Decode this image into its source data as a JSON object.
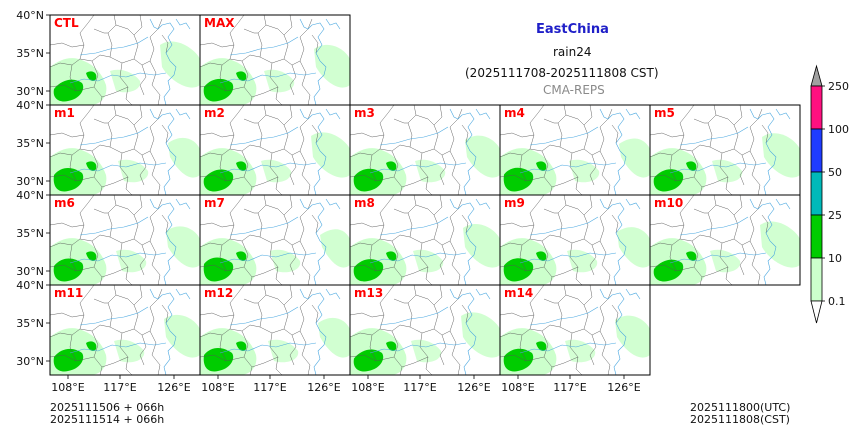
{
  "header": {
    "region": "EastChina",
    "variable": "rain24",
    "period": "(2025111708-2025111808 CST)",
    "source": "CMA-REPS"
  },
  "panels": [
    {
      "label": "CTL",
      "row": 0,
      "col": 0
    },
    {
      "label": "MAX",
      "row": 0,
      "col": 1
    },
    {
      "label": "m1",
      "row": 1,
      "col": 0
    },
    {
      "label": "m2",
      "row": 1,
      "col": 1
    },
    {
      "label": "m3",
      "row": 1,
      "col": 2
    },
    {
      "label": "m4",
      "row": 1,
      "col": 3
    },
    {
      "label": "m5",
      "row": 1,
      "col": 4
    },
    {
      "label": "m6",
      "row": 2,
      "col": 0
    },
    {
      "label": "m7",
      "row": 2,
      "col": 1
    },
    {
      "label": "m8",
      "row": 2,
      "col": 2
    },
    {
      "label": "m9",
      "row": 2,
      "col": 3
    },
    {
      "label": "m10",
      "row": 2,
      "col": 4
    },
    {
      "label": "m11",
      "row": 3,
      "col": 0
    },
    {
      "label": "m12",
      "row": 3,
      "col": 1
    },
    {
      "label": "m13",
      "row": 3,
      "col": 2
    },
    {
      "label": "m14",
      "row": 3,
      "col": 3
    }
  ],
  "lat_labels": [
    "40°N",
    "35°N",
    "30°N"
  ],
  "lon_labels": [
    "108°E",
    "117°E",
    "126°E"
  ],
  "colorbar": {
    "levels": [
      "0.1",
      "10",
      "25",
      "50",
      "100",
      "250"
    ],
    "colors": [
      "#ccffcc",
      "#00cc00",
      "#00b9b9",
      "#1f3cff",
      "#ff1080",
      "#a0a0a0"
    ]
  },
  "footer": {
    "init_line1": "2025111506  +  066h",
    "init_line2": "2025111514  +  066h",
    "valid_utc": "2025111800(UTC)",
    "valid_cst": "2025111808(CST)"
  },
  "colors": {
    "light_rain": "#ccffcc",
    "mid_rain": "#00cc00",
    "river": "#4aa8e0",
    "border": "#555555",
    "label": "#ff0000"
  }
}
